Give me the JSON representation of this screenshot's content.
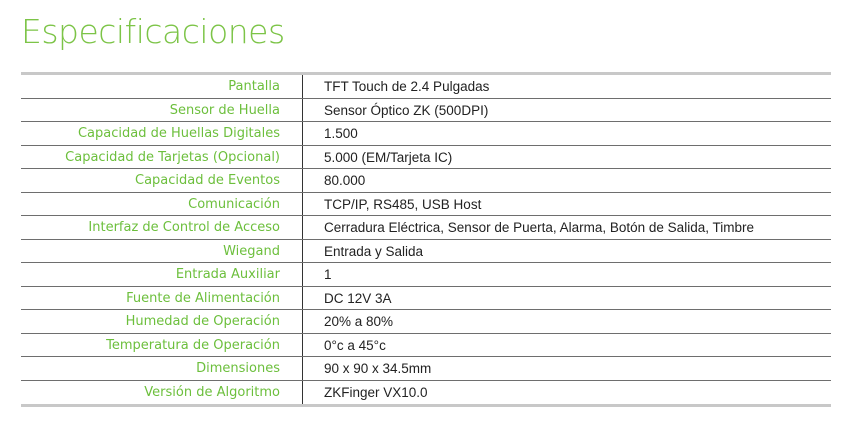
{
  "title": "Especificaciones",
  "specs": [
    {
      "label": "Pantalla",
      "value": "TFT Touch de 2.4 Pulgadas"
    },
    {
      "label": "Sensor de Huella",
      "value": "Sensor Óptico ZK (500DPI)"
    },
    {
      "label": "Capacidad de Huellas Digitales",
      "value": "1.500"
    },
    {
      "label": "Capacidad de Tarjetas (Opcional)",
      "value": "5.000 (EM/Tarjeta IC)"
    },
    {
      "label": "Capacidad de Eventos",
      "value": "80.000"
    },
    {
      "label": "Comunicación",
      "value": "TCP/IP, RS485, USB Host"
    },
    {
      "label": "Interfaz de Control de Acceso",
      "value": "Cerradura Eléctrica, Sensor de Puerta, Alarma, Botón de Salida, Timbre"
    },
    {
      "label": "Wiegand",
      "value": "Entrada y Salida"
    },
    {
      "label": "Entrada Auxiliar",
      "value": "1"
    },
    {
      "label": "Fuente de Alimentación",
      "value": "DC 12V 3A"
    },
    {
      "label": "Humedad de Operación",
      "value": "20% a 80%"
    },
    {
      "label": "Temperatura de Operación",
      "value": "0°c a 45°c"
    },
    {
      "label": "Dimensiones",
      "value": "90 x 90 x 34.5mm"
    },
    {
      "label": "Versión de Algoritmo",
      "value": "ZKFinger VX10.0"
    }
  ],
  "colors": {
    "accent": "#6cbf3c",
    "text": "#222222",
    "rule": "#c8c8c8"
  }
}
